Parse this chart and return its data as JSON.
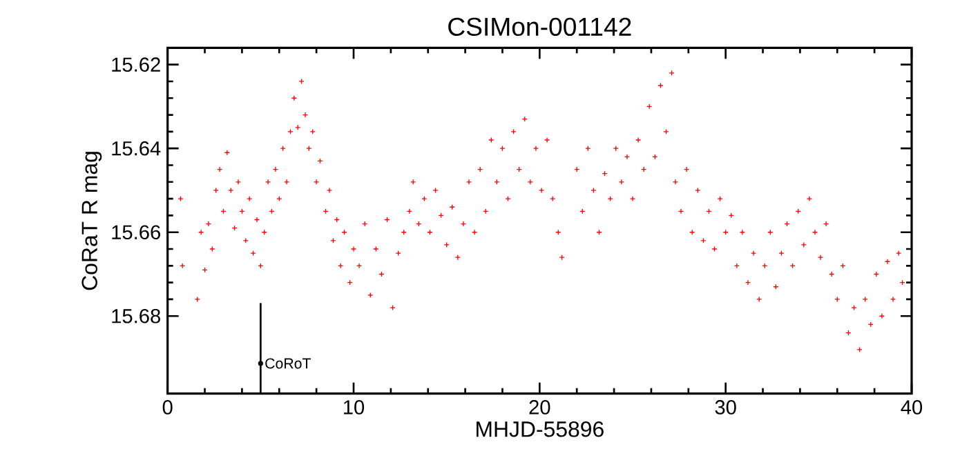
{
  "chart_data": {
    "type": "scatter",
    "title": "CSIMon-001142",
    "xlabel": "MHJD-55896",
    "ylabel": "CoRaT R mag",
    "xlim": [
      0,
      40
    ],
    "ylim": [
      15.6985,
      15.616
    ],
    "xticks": [
      0,
      10,
      20,
      30,
      40
    ],
    "yticks": [
      15.62,
      15.64,
      15.66,
      15.68
    ],
    "marker": "cross",
    "legend": false,
    "grid": false,
    "series": [
      {
        "color": "#ff0000",
        "x": [
          0.7,
          0.8,
          1.6,
          1.8,
          2.0,
          2.2,
          2.4,
          2.6,
          2.8,
          3.0,
          3.2,
          3.4,
          3.6,
          3.8,
          4.0,
          4.2,
          4.4,
          4.6,
          4.8,
          5.0,
          5.2,
          5.4,
          5.6,
          5.8,
          6.0,
          6.2,
          6.4,
          6.6,
          6.8,
          7.0,
          7.2,
          7.4,
          7.6,
          7.8,
          8.0,
          8.2,
          8.5,
          8.7,
          8.9,
          9.1,
          9.3,
          9.5,
          9.8,
          10.0,
          10.3,
          10.6,
          10.9,
          11.2,
          11.5,
          11.8,
          12.1,
          12.4,
          12.7,
          13.0,
          13.2,
          13.5,
          13.8,
          14.1,
          14.4,
          14.7,
          15.0,
          15.3,
          15.6,
          15.9,
          16.2,
          16.5,
          16.8,
          17.1,
          17.4,
          17.7,
          18.0,
          18.3,
          18.6,
          18.9,
          19.2,
          19.5,
          19.8,
          20.1,
          20.4,
          20.7,
          21.0,
          21.2,
          22.0,
          22.3,
          22.6,
          22.9,
          23.2,
          23.5,
          23.8,
          24.1,
          24.4,
          24.7,
          25.0,
          25.3,
          25.6,
          25.9,
          26.2,
          26.5,
          26.8,
          27.1,
          27.3,
          27.6,
          27.9,
          28.2,
          28.5,
          28.8,
          29.1,
          29.4,
          29.7,
          30.0,
          30.3,
          30.6,
          30.9,
          31.2,
          31.5,
          31.8,
          32.1,
          32.4,
          32.7,
          33.0,
          33.3,
          33.6,
          33.9,
          34.2,
          34.5,
          34.8,
          35.1,
          35.4,
          35.7,
          36.0,
          36.3,
          36.6,
          36.9,
          37.2,
          37.5,
          37.8,
          38.1,
          38.4,
          38.7,
          39.0,
          39.3,
          39.5
        ],
        "values": [
          15.652,
          15.668,
          15.676,
          15.66,
          15.669,
          15.658,
          15.664,
          15.65,
          15.645,
          15.655,
          15.641,
          15.65,
          15.659,
          15.648,
          15.655,
          15.662,
          15.652,
          15.665,
          15.657,
          15.668,
          15.66,
          15.648,
          15.655,
          15.645,
          15.652,
          15.64,
          15.648,
          15.636,
          15.628,
          15.635,
          15.624,
          15.632,
          15.64,
          15.636,
          15.648,
          15.643,
          15.655,
          15.65,
          15.662,
          15.657,
          15.668,
          15.66,
          15.672,
          15.664,
          15.668,
          15.658,
          15.675,
          15.664,
          15.67,
          15.657,
          15.678,
          15.665,
          15.66,
          15.655,
          15.648,
          15.658,
          15.652,
          15.66,
          15.65,
          15.656,
          15.663,
          15.654,
          15.666,
          15.658,
          15.648,
          15.66,
          15.645,
          15.655,
          15.638,
          15.648,
          15.64,
          15.652,
          15.636,
          15.645,
          15.633,
          15.648,
          15.64,
          15.65,
          15.638,
          15.652,
          15.66,
          15.666,
          15.645,
          15.655,
          15.64,
          15.65,
          15.66,
          15.646,
          15.652,
          15.64,
          15.648,
          15.642,
          15.652,
          15.638,
          15.645,
          15.63,
          15.642,
          15.625,
          15.636,
          15.622,
          15.648,
          15.655,
          15.645,
          15.66,
          15.65,
          15.662,
          15.655,
          15.664,
          15.652,
          15.66,
          15.656,
          15.668,
          15.66,
          15.672,
          15.665,
          15.676,
          15.668,
          15.66,
          15.673,
          15.665,
          15.658,
          15.668,
          15.655,
          15.663,
          15.652,
          15.66,
          15.666,
          15.658,
          15.67,
          15.676,
          15.668,
          15.684,
          15.678,
          15.688,
          15.676,
          15.682,
          15.67,
          15.68,
          15.667,
          15.676,
          15.665,
          15.672
        ]
      },
      {
        "name": "CoRoT",
        "color": "#000000",
        "marker": "circle",
        "x": [
          5
        ],
        "values": [
          15.6913
        ],
        "errors": [
          [
            15.6769,
            15.6985
          ]
        ]
      }
    ]
  }
}
